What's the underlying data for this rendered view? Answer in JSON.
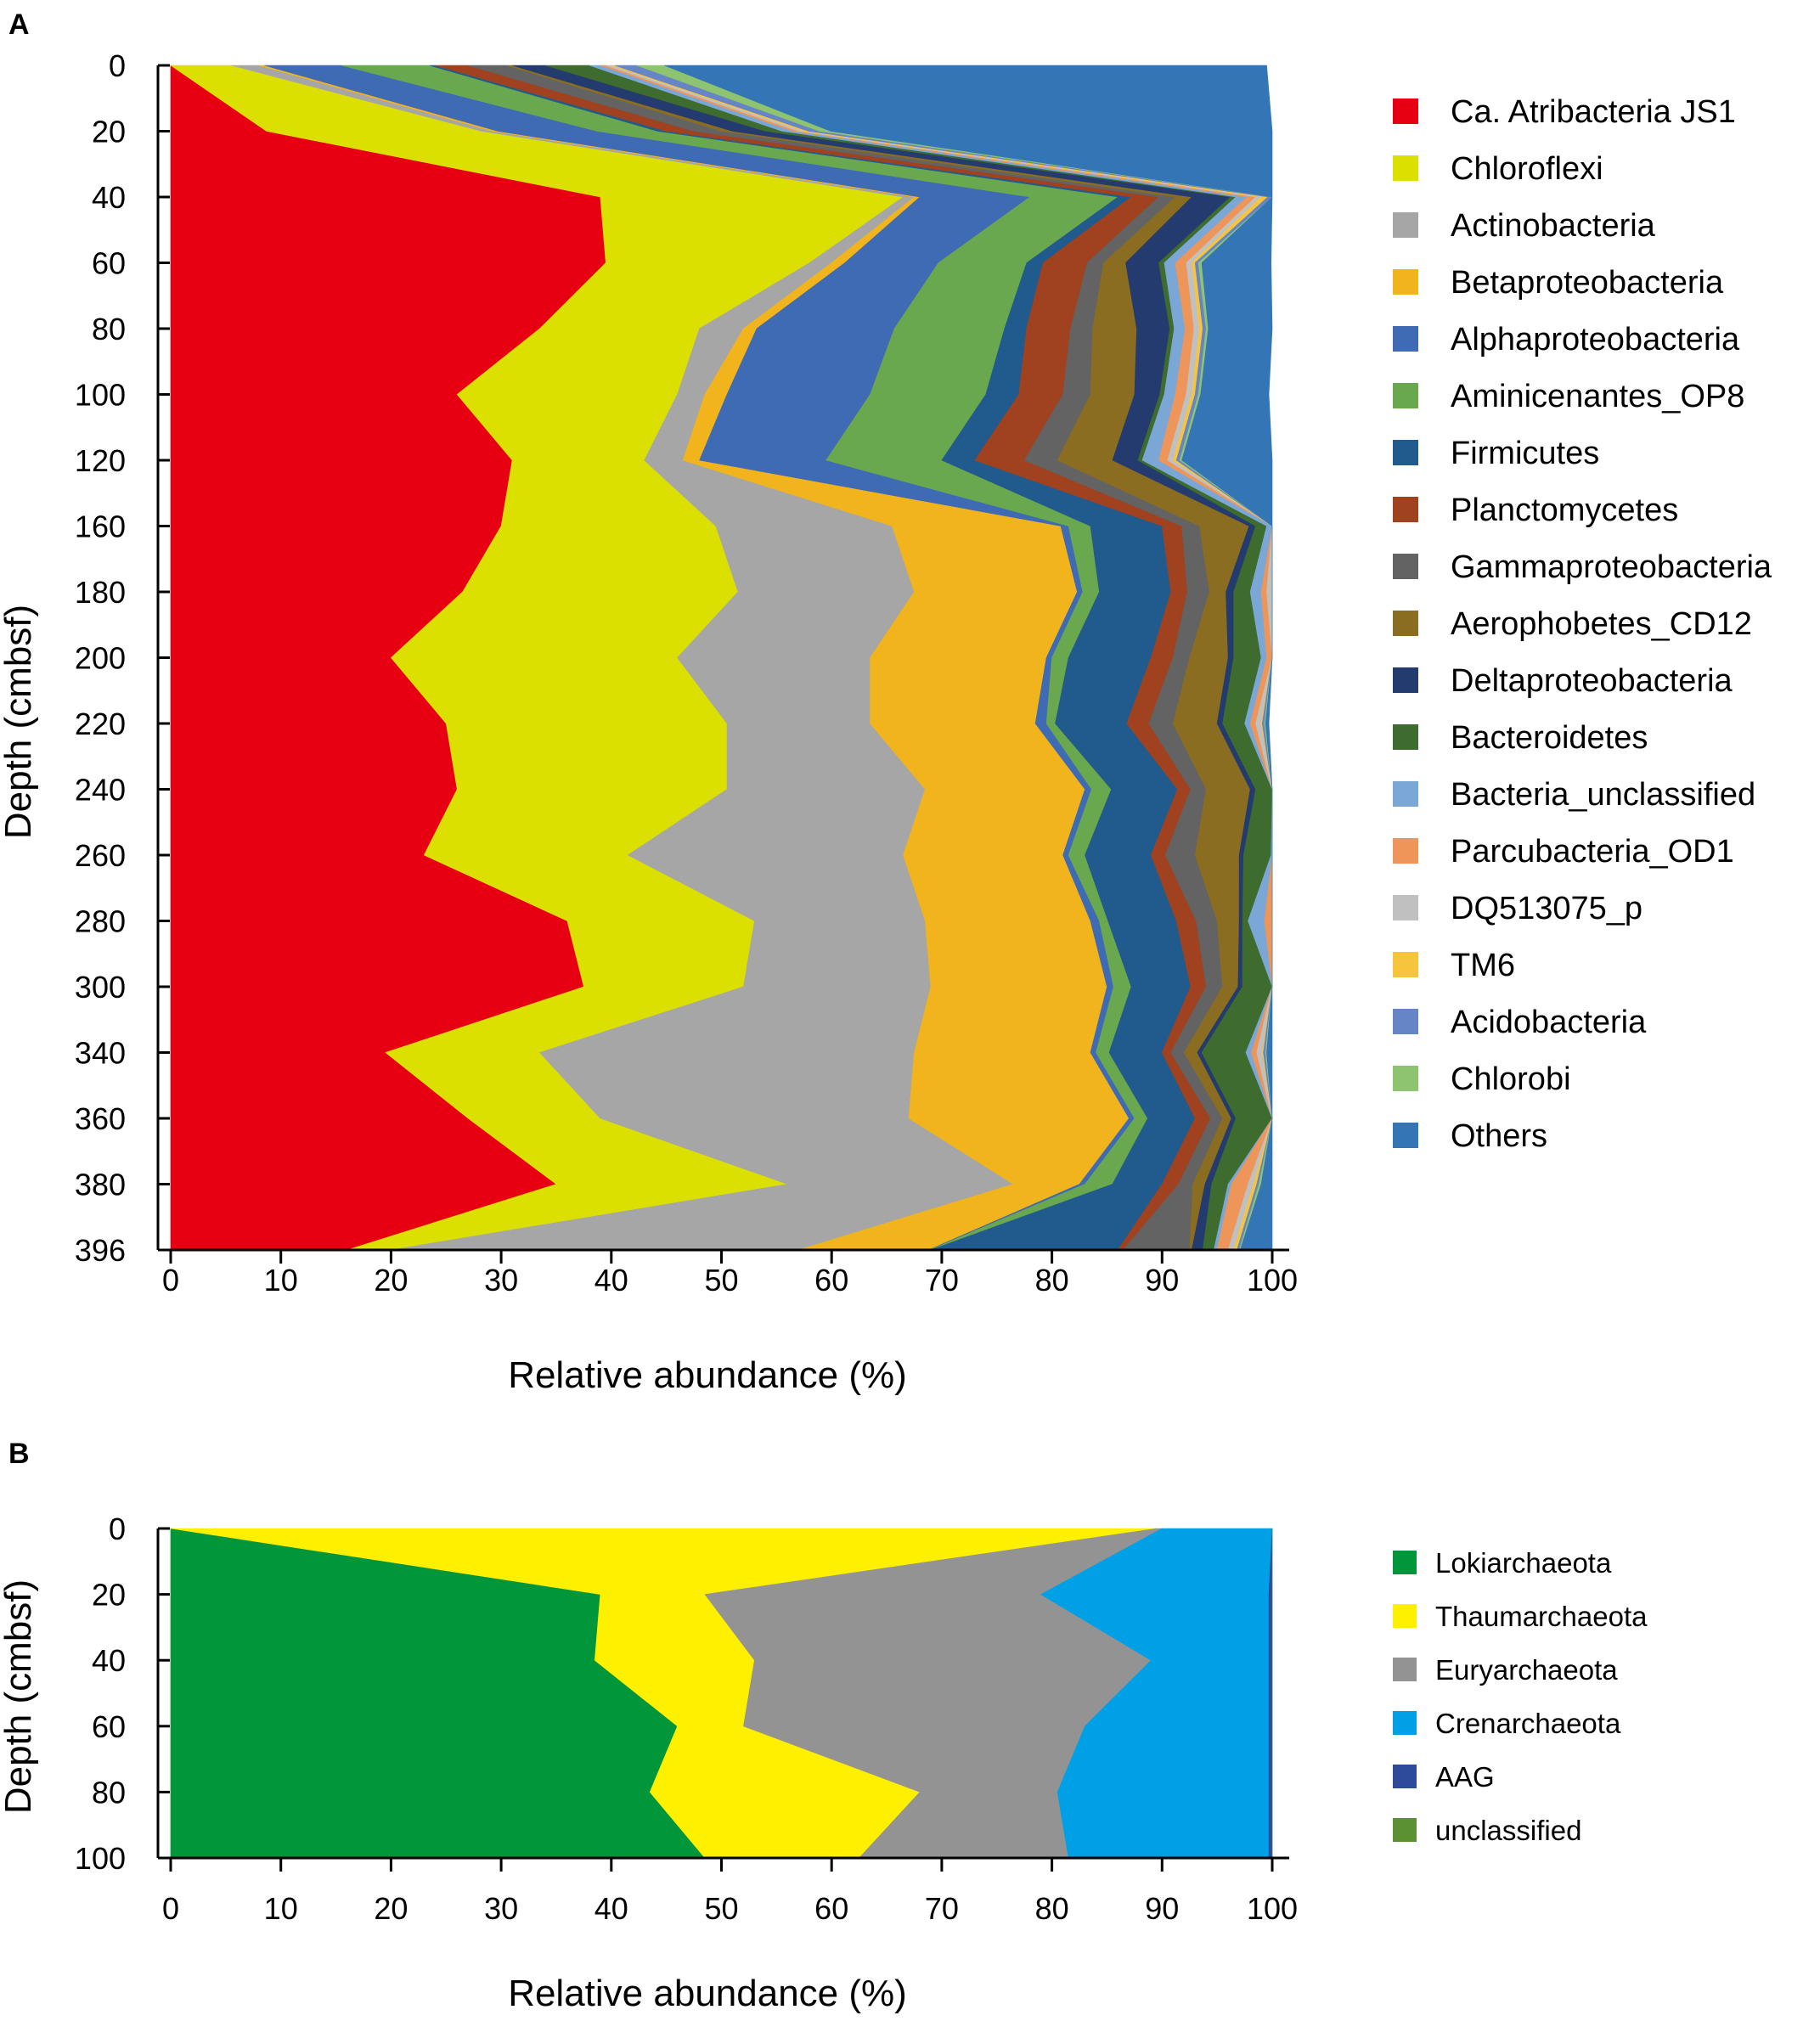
{
  "chart_data": [
    {
      "panel": "A",
      "type": "area",
      "stacking": "horizontal-cumulative-percent",
      "xlabel": "Relative abundance (%)",
      "ylabel": "Depth (cmbsf)",
      "xlim": [
        0,
        100
      ],
      "x_ticks": [
        "0",
        "10",
        "20",
        "30",
        "40",
        "50",
        "60",
        "70",
        "80",
        "90",
        "100"
      ],
      "depths": [
        "0",
        "20",
        "40",
        "60",
        "80",
        "100",
        "120",
        "160",
        "180",
        "200",
        "220",
        "240",
        "260",
        "280",
        "300",
        "340",
        "360",
        "380",
        "396"
      ],
      "legend_position": "right",
      "series": [
        {
          "name": "Ca. Atribacteria JS1",
          "color": "#e60012",
          "values": [
            0,
            8.7,
            39,
            39.5,
            33.5,
            26,
            31,
            30,
            26.5,
            20,
            25,
            26,
            23,
            36,
            37.5,
            19.5,
            27,
            35,
            16
          ]
        },
        {
          "name": "Chloroflexi",
          "color": "#dce000",
          "values": [
            5.5,
            19.5,
            27.5,
            18.5,
            14.5,
            20,
            12,
            19.5,
            25,
            26,
            25.5,
            24.5,
            18.5,
            17,
            14.5,
            14,
            12,
            21,
            4
          ]
        },
        {
          "name": "Actinobacteria",
          "color": "#a6a6a6",
          "values": [
            2.5,
            1,
            1,
            2,
            4,
            2.5,
            3.5,
            16,
            16,
            17.5,
            13,
            18,
            25,
            15.5,
            17,
            34,
            28,
            20.5,
            37
          ]
        },
        {
          "name": "Betaproteobacteria",
          "color": "#f2b41c",
          "values": [
            0.5,
            0.5,
            0.5,
            1.2,
            1.2,
            2,
            1.5,
            15.3,
            14.8,
            16,
            15,
            14.5,
            14.5,
            15,
            16,
            16,
            20,
            6,
            11.8
          ]
        },
        {
          "name": "Alphaproteobacteria",
          "color": "#3f6ab4",
          "values": [
            7,
            9,
            10,
            8.5,
            12.5,
            13,
            11.5,
            0.7,
            0.5,
            0.5,
            1,
            0.6,
            0.5,
            0.8,
            0.6,
            0.5,
            0.5,
            0.5,
            0.1
          ]
        },
        {
          "name": "Aminicenantes_OP8",
          "color": "#6aa84f",
          "values": [
            8,
            5.5,
            8,
            8,
            10,
            10.5,
            10.5,
            2,
            1.5,
            1.5,
            0.8,
            1.8,
            1.5,
            0.8,
            1.6,
            1.2,
            1.2,
            2.5,
            0.1
          ]
        },
        {
          "name": "Firmicutes",
          "color": "#215a8c",
          "values": [
            0.5,
            0.8,
            1.2,
            1.5,
            2,
            3,
            3,
            6.5,
            6.5,
            7.5,
            6.5,
            6,
            6,
            6.2,
            5.4,
            4.8,
            4.3,
            4.5,
            17
          ]
        },
        {
          "name": "Planctomycetes",
          "color": "#a0421f",
          "values": [
            3,
            2.5,
            2.5,
            4,
            4,
            4,
            4.5,
            1.8,
            1.5,
            2,
            2,
            1.2,
            1.3,
            1.8,
            1.4,
            0.8,
            1.4,
            1.5,
            0.5
          ]
        },
        {
          "name": "Gammaproteobacteria",
          "color": "#636363",
          "values": [
            3.5,
            2.5,
            1.5,
            1.5,
            2,
            2.5,
            3,
            1.6,
            2,
            1.5,
            2.2,
            1.4,
            2.7,
            1.9,
            1.5,
            1.2,
            1.1,
            1.3,
            6
          ]
        },
        {
          "name": "Aerophobetes_CD12",
          "color": "#8b6d22",
          "values": [
            0.5,
            1,
            1.5,
            2,
            4,
            4,
            5,
            4.5,
            1.5,
            3.5,
            4,
            4,
            4,
            2,
            1.4,
            1.2,
            0.8,
            1.1,
            0.2
          ]
        },
        {
          "name": "Deltaproteobacteria",
          "color": "#233b6e",
          "values": [
            3,
            3,
            3.5,
            3,
            3,
            2.3,
            2.3,
            0.6,
            0.7,
            0.5,
            0.5,
            0.5,
            0.4,
            0.3,
            0.4,
            0.4,
            0.4,
            0.6,
            1
          ]
        },
        {
          "name": "Bacteroidetes",
          "color": "#3e6b2e",
          "values": [
            4,
            1.5,
            0.5,
            0.5,
            0.4,
            0.4,
            0.4,
            1,
            1.5,
            2.5,
            2,
            1.5,
            2.5,
            0.5,
            3.5,
            4,
            5,
            1.5,
            1
          ]
        },
        {
          "name": "Bacteria_unclassified",
          "color": "#7aa7d6",
          "values": [
            1,
            1,
            1,
            1,
            1,
            1,
            1.5,
            0.5,
            1,
            0.5,
            0.5,
            0.5,
            0.5,
            1.5,
            0.5,
            0.5,
            0.5,
            0.3,
            0.3
          ]
        },
        {
          "name": "Parcubacteria_OD1",
          "color": "#ee955a",
          "values": [
            0.5,
            0.5,
            0.8,
            1,
            0.8,
            1,
            0.8,
            0.1,
            0.5,
            0.5,
            0.5,
            0.5,
            0.3,
            1,
            0.5,
            0.5,
            1,
            1.5,
            1
          ]
        },
        {
          "name": "DQ513075_p",
          "color": "#c0c0c0",
          "values": [
            0.5,
            0.5,
            0.5,
            0.5,
            0.5,
            0.5,
            0.5,
            0.5,
            0.5,
            0.5,
            0.5,
            0.5,
            0.5,
            0.5,
            0.5,
            0.5,
            0.5,
            0.5,
            0.5
          ]
        },
        {
          "name": "TM6",
          "color": "#f7c43d",
          "values": [
            0.3,
            0.4,
            0.6,
            0.3,
            0.3,
            0.3,
            0.3,
            0.1,
            0.1,
            0.1,
            0.1,
            0.1,
            0.1,
            0.1,
            0.1,
            0.1,
            0.1,
            0.3,
            0.3
          ]
        },
        {
          "name": "Acidobacteria",
          "color": "#6685c6",
          "values": [
            2,
            1,
            0.5,
            0.3,
            0.3,
            0.3,
            0.3,
            0.2,
            0.2,
            0.2,
            0.2,
            0.2,
            0.2,
            0.2,
            0.2,
            0.2,
            0.2,
            0.2,
            0.2
          ]
        },
        {
          "name": "Chlorobi",
          "color": "#8ec46f",
          "values": [
            2.5,
            1,
            0.4,
            0.3,
            0.2,
            0.2,
            0.2,
            0.1,
            0.2,
            0.2,
            0.1,
            0.2,
            0.2,
            0.1,
            0.1,
            0.1,
            0.2,
            0.2,
            0.1
          ]
        },
        {
          "name": "Others",
          "color": "#3475b5",
          "values": [
            54.7,
            45.1,
            2.6,
            6.3,
            7.7,
            6.2,
            10.9,
            1.8,
            2.2,
            0.3,
            0.3,
            1.0,
            1.0,
            1.7,
            2.5,
            1.4,
            0.1,
            1.1,
            3.9
          ]
        }
      ],
      "total": 100
    },
    {
      "panel": "B",
      "type": "area",
      "stacking": "horizontal-cumulative-percent",
      "xlabel": "Relative abundance (%)",
      "ylabel": "Depth (cmbsf)",
      "xlim": [
        0,
        100
      ],
      "x_ticks": [
        "0",
        "10",
        "20",
        "30",
        "40",
        "50",
        "60",
        "70",
        "80",
        "90",
        "100"
      ],
      "depths": [
        "0",
        "20",
        "40",
        "60",
        "80",
        "100"
      ],
      "legend_position": "right",
      "series": [
        {
          "name": "Lokiarchaeota",
          "color": "#009639",
          "values": [
            0,
            39,
            38.5,
            46,
            43.5,
            48.5
          ]
        },
        {
          "name": "Thaumarchaeota",
          "color": "#fff000",
          "values": [
            89.5,
            9.5,
            14.5,
            6,
            24.5,
            14
          ]
        },
        {
          "name": "Euryarchaeota",
          "color": "#939393",
          "values": [
            0.5,
            30.5,
            36,
            31,
            12.5,
            19
          ]
        },
        {
          "name": "Crenarchaeota",
          "color": "#00a0e6",
          "values": [
            10,
            20.7,
            10.7,
            16.7,
            19.2,
            18.2
          ]
        },
        {
          "name": "AAG",
          "color": "#2e4a9a",
          "values": [
            0,
            0.3,
            0.3,
            0.3,
            0.3,
            0.3
          ]
        },
        {
          "name": "unclassified",
          "color": "#5b9132",
          "values": [
            0,
            0,
            0,
            0,
            0,
            0
          ]
        }
      ],
      "total": 100
    }
  ]
}
